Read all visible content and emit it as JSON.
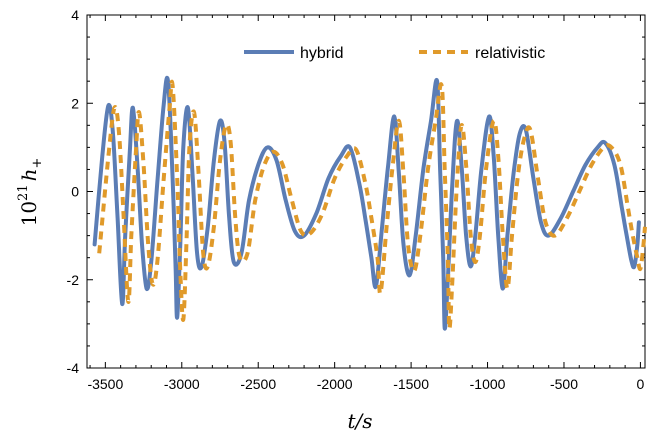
{
  "chart_data": {
    "type": "line",
    "title": "",
    "xlabel": "t/s",
    "ylabel": "10^21 h_+",
    "xlim": [
      -3620,
      30
    ],
    "ylim": [
      -4,
      4
    ],
    "grid": false,
    "legend_position": "top-right",
    "x_ticks": [
      -3500,
      -3000,
      -2500,
      -2000,
      -1500,
      -1000,
      -500,
      0
    ],
    "x_tick_labels": [
      "-3500",
      "-3000",
      "-2500",
      "-2000",
      "-1500",
      "-1000",
      "-500",
      "0"
    ],
    "y_ticks": [
      -4,
      -2,
      0,
      2,
      4
    ],
    "y_tick_labels": [
      "-4",
      "-2",
      "0",
      "2",
      "4"
    ],
    "series": [
      {
        "name": "hybrid",
        "color": "#5b7db5",
        "style": "solid",
        "points": [
          [
            -3570,
            -1.2
          ],
          [
            -3520,
            0.8
          ],
          [
            -3480,
            1.95
          ],
          [
            -3450,
            1.3
          ],
          [
            -3420,
            -0.6
          ],
          [
            -3390,
            -2.55
          ],
          [
            -3370,
            -1.0
          ],
          [
            -3340,
            0.9
          ],
          [
            -3320,
            1.9
          ],
          [
            -3290,
            0.6
          ],
          [
            -3260,
            -1.2
          ],
          [
            -3230,
            -2.2
          ],
          [
            -3200,
            -1.6
          ],
          [
            -3160,
            0.2
          ],
          [
            -3120,
            1.9
          ],
          [
            -3090,
            2.5
          ],
          [
            -3060,
            0.3
          ],
          [
            -3040,
            -1.8
          ],
          [
            -3030,
            -2.85
          ],
          [
            -3010,
            -1.2
          ],
          [
            -2990,
            1.0
          ],
          [
            -2960,
            1.9
          ],
          [
            -2930,
            0.4
          ],
          [
            -2900,
            -1.4
          ],
          [
            -2870,
            -1.7
          ],
          [
            -2830,
            -0.8
          ],
          [
            -2790,
            0.7
          ],
          [
            -2750,
            1.6
          ],
          [
            -2720,
            1.1
          ],
          [
            -2690,
            -0.6
          ],
          [
            -2660,
            -1.6
          ],
          [
            -2610,
            -1.4
          ],
          [
            -2560,
            -0.2
          ],
          [
            -2500,
            0.6
          ],
          [
            -2440,
            1.0
          ],
          [
            -2380,
            0.7
          ],
          [
            -2320,
            -0.2
          ],
          [
            -2260,
            -0.9
          ],
          [
            -2200,
            -1.0
          ],
          [
            -2120,
            -0.5
          ],
          [
            -2040,
            0.3
          ],
          [
            -1960,
            0.8
          ],
          [
            -1900,
            1.0
          ],
          [
            -1840,
            0.2
          ],
          [
            -1800,
            -0.6
          ],
          [
            -1760,
            -1.5
          ],
          [
            -1730,
            -2.15
          ],
          [
            -1690,
            -0.8
          ],
          [
            -1650,
            0.6
          ],
          [
            -1610,
            1.7
          ],
          [
            -1580,
            0.4
          ],
          [
            -1550,
            -1.2
          ],
          [
            -1510,
            -1.9
          ],
          [
            -1470,
            -1.0
          ],
          [
            -1420,
            0.5
          ],
          [
            -1370,
            1.6
          ],
          [
            -1330,
            2.5
          ],
          [
            -1310,
            0.5
          ],
          [
            -1290,
            -1.5
          ],
          [
            -1280,
            -3.1
          ],
          [
            -1260,
            -2.0
          ],
          [
            -1230,
            0.2
          ],
          [
            -1200,
            1.6
          ],
          [
            -1170,
            0.6
          ],
          [
            -1140,
            -1.0
          ],
          [
            -1110,
            -1.7
          ],
          [
            -1080,
            -1.0
          ],
          [
            -1040,
            0.5
          ],
          [
            -990,
            1.7
          ],
          [
            -960,
            0.8
          ],
          [
            -930,
            -1.0
          ],
          [
            -900,
            -2.2
          ],
          [
            -870,
            -1.0
          ],
          [
            -830,
            0.4
          ],
          [
            -790,
            1.3
          ],
          [
            -750,
            1.4
          ],
          [
            -700,
            0.3
          ],
          [
            -650,
            -0.7
          ],
          [
            -600,
            -1.0
          ],
          [
            -520,
            -0.6
          ],
          [
            -440,
            0.0
          ],
          [
            -360,
            0.6
          ],
          [
            -280,
            1.0
          ],
          [
            -230,
            1.1
          ],
          [
            -170,
            0.6
          ],
          [
            -120,
            -0.4
          ],
          [
            -90,
            -1.0
          ],
          [
            -60,
            -1.55
          ],
          [
            -40,
            -1.7
          ],
          [
            -20,
            -1.2
          ],
          [
            -10,
            -0.7
          ]
        ]
      },
      {
        "name": "relativistic",
        "color": "#e09a2a",
        "style": "dashed",
        "points": [
          [
            -3540,
            -1.4
          ],
          [
            -3480,
            0.8
          ],
          [
            -3440,
            1.9
          ],
          [
            -3410,
            1.3
          ],
          [
            -3380,
            -0.6
          ],
          [
            -3350,
            -2.5
          ],
          [
            -3330,
            -1.0
          ],
          [
            -3300,
            0.9
          ],
          [
            -3280,
            1.8
          ],
          [
            -3250,
            0.6
          ],
          [
            -3220,
            -1.2
          ],
          [
            -3190,
            -2.1
          ],
          [
            -3160,
            -1.6
          ],
          [
            -3120,
            0.2
          ],
          [
            -3080,
            1.9
          ],
          [
            -3060,
            2.4
          ],
          [
            -3030,
            0.3
          ],
          [
            -3010,
            -1.8
          ],
          [
            -2990,
            -2.9
          ],
          [
            -2970,
            -1.2
          ],
          [
            -2950,
            1.0
          ],
          [
            -2920,
            1.8
          ],
          [
            -2890,
            0.4
          ],
          [
            -2860,
            -1.4
          ],
          [
            -2830,
            -1.7
          ],
          [
            -2790,
            -0.8
          ],
          [
            -2750,
            0.7
          ],
          [
            -2710,
            1.5
          ],
          [
            -2680,
            1.1
          ],
          [
            -2650,
            -0.6
          ],
          [
            -2620,
            -1.5
          ],
          [
            -2570,
            -1.4
          ],
          [
            -2520,
            -0.2
          ],
          [
            -2460,
            0.6
          ],
          [
            -2400,
            0.9
          ],
          [
            -2340,
            0.6
          ],
          [
            -2280,
            -0.2
          ],
          [
            -2220,
            -0.9
          ],
          [
            -2160,
            -0.95
          ],
          [
            -2080,
            -0.5
          ],
          [
            -2000,
            0.3
          ],
          [
            -1920,
            0.8
          ],
          [
            -1860,
            0.95
          ],
          [
            -1800,
            0.2
          ],
          [
            -1760,
            -0.6
          ],
          [
            -1720,
            -1.5
          ],
          [
            -1700,
            -2.3
          ],
          [
            -1660,
            -0.8
          ],
          [
            -1620,
            0.6
          ],
          [
            -1580,
            1.6
          ],
          [
            -1550,
            0.4
          ],
          [
            -1520,
            -1.2
          ],
          [
            -1480,
            -1.8
          ],
          [
            -1440,
            -1.0
          ],
          [
            -1390,
            0.5
          ],
          [
            -1340,
            1.6
          ],
          [
            -1300,
            2.4
          ],
          [
            -1280,
            0.5
          ],
          [
            -1260,
            -1.5
          ],
          [
            -1250,
            -3.1
          ],
          [
            -1230,
            -2.0
          ],
          [
            -1200,
            0.2
          ],
          [
            -1170,
            1.5
          ],
          [
            -1140,
            0.6
          ],
          [
            -1110,
            -1.0
          ],
          [
            -1080,
            -1.6
          ],
          [
            -1050,
            -1.0
          ],
          [
            -1010,
            0.5
          ],
          [
            -960,
            1.6
          ],
          [
            -930,
            0.8
          ],
          [
            -900,
            -1.0
          ],
          [
            -870,
            -2.2
          ],
          [
            -840,
            -1.0
          ],
          [
            -800,
            0.4
          ],
          [
            -760,
            1.2
          ],
          [
            -720,
            1.4
          ],
          [
            -670,
            0.3
          ],
          [
            -620,
            -0.7
          ],
          [
            -560,
            -1.0
          ],
          [
            -480,
            -0.6
          ],
          [
            -400,
            0.0
          ],
          [
            -320,
            0.6
          ],
          [
            -240,
            1.0
          ],
          [
            -190,
            1.0
          ],
          [
            -130,
            0.6
          ],
          [
            -80,
            -0.4
          ],
          [
            -50,
            -1.0
          ],
          [
            -20,
            -1.5
          ],
          [
            0,
            -1.75
          ],
          [
            20,
            -1.2
          ],
          [
            30,
            -0.8
          ]
        ]
      }
    ]
  }
}
